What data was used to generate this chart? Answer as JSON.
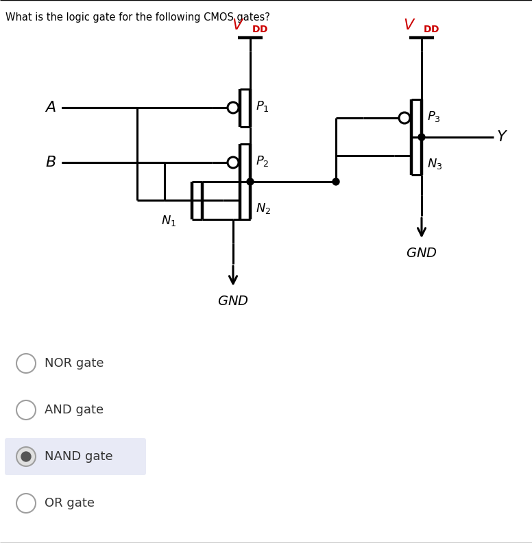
{
  "title": "What is the logic gate for the following CMOS gates?",
  "title_fontsize": 10.5,
  "vdd_color": "#cc0000",
  "wire_color": "#000000",
  "lw": 2.2,
  "background_color": "#ffffff",
  "options": [
    {
      "label": "NOR gate",
      "selected": false
    },
    {
      "label": "AND gate",
      "selected": false
    },
    {
      "label": "NAND gate",
      "selected": true
    },
    {
      "label": "OR gate",
      "selected": false
    }
  ],
  "fig_w": 7.76,
  "fig_h": 7.92,
  "dpi": 100
}
